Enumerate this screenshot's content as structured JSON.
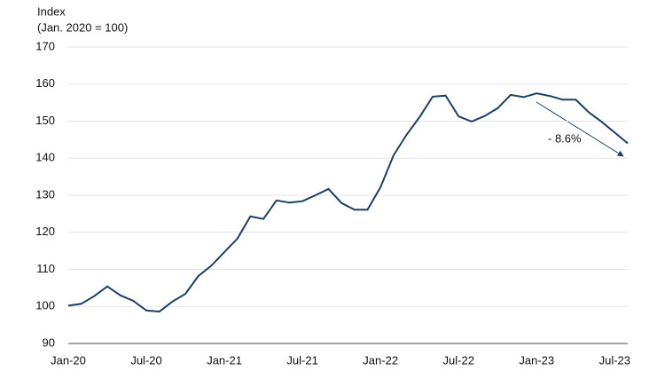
{
  "chart_data": {
    "type": "line",
    "y_label": [
      "Index",
      "(Jan. 2020 = 100)"
    ],
    "annotation": "- 8.6%",
    "categories": [
      "Jan-20",
      null,
      null,
      null,
      null,
      null,
      "Jul-20",
      null,
      null,
      null,
      null,
      null,
      "Jan-21",
      null,
      null,
      null,
      null,
      null,
      "Jul-21",
      null,
      null,
      null,
      null,
      null,
      "Jan-22",
      null,
      null,
      null,
      null,
      null,
      "Jul-22",
      null,
      null,
      null,
      null,
      null,
      "Jan-23",
      null,
      null,
      null,
      null,
      null,
      "Jul-23",
      null
    ],
    "values": [
      100.2,
      100.7,
      102.8,
      105.4,
      103,
      101.5,
      98.9,
      98.6,
      101.3,
      103.4,
      108.2,
      111,
      114.7,
      118.3,
      124.3,
      123.6,
      128.6,
      128,
      128.4,
      130,
      131.7,
      127.9,
      126.1,
      126.1,
      132.2,
      140.8,
      146.3,
      151.1,
      156.6,
      156.9,
      151.3,
      149.9,
      151.4,
      153.5,
      157.1,
      156.5,
      157.5,
      156.8,
      155.8,
      155.8,
      152.4,
      149.8,
      146.9,
      144
    ],
    "color": "#1b3f66",
    "ylim": [
      90,
      170
    ],
    "yticks": [
      90,
      100,
      110,
      120,
      130,
      140,
      150,
      160,
      170
    ],
    "grid": true
  }
}
